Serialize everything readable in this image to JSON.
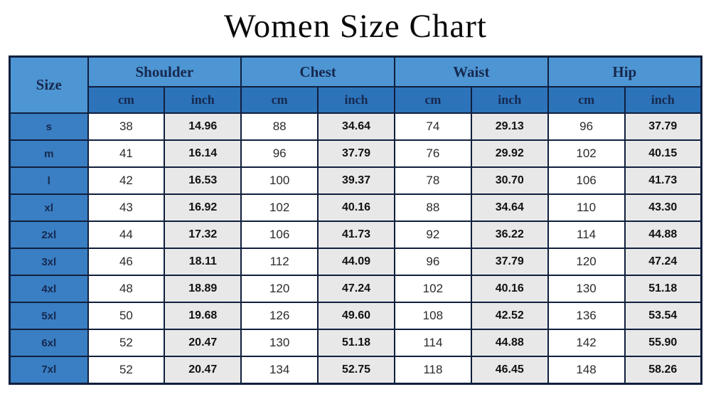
{
  "title": "Women Size Chart",
  "table": {
    "size_header": "Size",
    "groups": [
      "Shoulder",
      "Chest",
      "Waist",
      "Hip"
    ],
    "units": [
      "cm",
      "inch"
    ],
    "rows": [
      {
        "size": "s",
        "values": [
          "38",
          "14.96",
          "88",
          "34.64",
          "74",
          "29.13",
          "96",
          "37.79"
        ]
      },
      {
        "size": "m",
        "values": [
          "41",
          "16.14",
          "96",
          "37.79",
          "76",
          "29.92",
          "102",
          "40.15"
        ]
      },
      {
        "size": "l",
        "values": [
          "42",
          "16.53",
          "100",
          "39.37",
          "78",
          "30.70",
          "106",
          "41.73"
        ]
      },
      {
        "size": "xl",
        "values": [
          "43",
          "16.92",
          "102",
          "40.16",
          "88",
          "34.64",
          "110",
          "43.30"
        ]
      },
      {
        "size": "2xl",
        "values": [
          "44",
          "17.32",
          "106",
          "41.73",
          "92",
          "36.22",
          "114",
          "44.88"
        ]
      },
      {
        "size": "3xl",
        "values": [
          "46",
          "18.11",
          "112",
          "44.09",
          "96",
          "37.79",
          "120",
          "47.24"
        ]
      },
      {
        "size": "4xl",
        "values": [
          "48",
          "18.89",
          "120",
          "47.24",
          "102",
          "40.16",
          "130",
          "51.18"
        ]
      },
      {
        "size": "5xl",
        "values": [
          "50",
          "19.68",
          "126",
          "49.60",
          "108",
          "42.52",
          "136",
          "53.54"
        ]
      },
      {
        "size": "6xl",
        "values": [
          "52",
          "20.47",
          "130",
          "51.18",
          "114",
          "44.88",
          "142",
          "55.90"
        ]
      },
      {
        "size": "7xl",
        "values": [
          "52",
          "20.47",
          "134",
          "52.75",
          "118",
          "46.45",
          "148",
          "58.26"
        ]
      }
    ]
  },
  "colors": {
    "group-blue": "#4e95d3",
    "unit-blue": "#2d73ba",
    "size-blue": "#3a7ec3",
    "navy-text": "#16294f",
    "border-navy": "#101f3d",
    "inch-gray": "#e8e8e8",
    "cm-white": "#ffffff"
  },
  "chart_data": {
    "type": "table",
    "title": "Women Size Chart",
    "columns": [
      "Size",
      "Shoulder cm",
      "Shoulder inch",
      "Chest cm",
      "Chest inch",
      "Waist cm",
      "Waist inch",
      "Hip cm",
      "Hip inch"
    ],
    "rows": [
      [
        "s",
        38,
        14.96,
        88,
        34.64,
        74,
        29.13,
        96,
        37.79
      ],
      [
        "m",
        41,
        16.14,
        96,
        37.79,
        76,
        29.92,
        102,
        40.15
      ],
      [
        "l",
        42,
        16.53,
        100,
        39.37,
        78,
        30.7,
        106,
        41.73
      ],
      [
        "xl",
        43,
        16.92,
        102,
        40.16,
        88,
        34.64,
        110,
        43.3
      ],
      [
        "2xl",
        44,
        17.32,
        106,
        41.73,
        92,
        36.22,
        114,
        44.88
      ],
      [
        "3xl",
        46,
        18.11,
        112,
        44.09,
        96,
        37.79,
        120,
        47.24
      ],
      [
        "4xl",
        48,
        18.89,
        120,
        47.24,
        102,
        40.16,
        130,
        51.18
      ],
      [
        "5xl",
        50,
        19.68,
        126,
        49.6,
        108,
        42.52,
        136,
        53.54
      ],
      [
        "6xl",
        52,
        20.47,
        130,
        51.18,
        114,
        44.88,
        142,
        55.9
      ],
      [
        "7xl",
        52,
        20.47,
        134,
        52.75,
        118,
        46.45,
        148,
        58.26
      ]
    ]
  }
}
